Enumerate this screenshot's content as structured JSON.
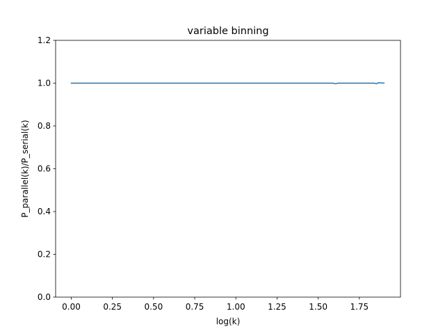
{
  "chart_data": {
    "type": "line",
    "title": "variable binning",
    "xlabel": "log(k)",
    "ylabel": "P_parallel(k)/P_serial(k)",
    "xlim": [
      -0.095,
      2.0
    ],
    "ylim": [
      0.0,
      1.2
    ],
    "xticks": [
      0.0,
      0.25,
      0.5,
      0.75,
      1.0,
      1.25,
      1.5,
      1.75
    ],
    "xtick_labels": [
      "0.00",
      "0.25",
      "0.50",
      "0.75",
      "1.00",
      "1.25",
      "1.50",
      "1.75"
    ],
    "yticks": [
      0.0,
      0.2,
      0.4,
      0.6,
      0.8,
      1.0,
      1.2
    ],
    "ytick_labels": [
      "0.0",
      "0.2",
      "0.4",
      "0.6",
      "0.8",
      "1.0",
      "1.2"
    ],
    "grid": false,
    "series": [
      {
        "color": "#1f77b4",
        "x": [
          0.0,
          0.25,
          0.5,
          0.75,
          1.0,
          1.25,
          1.5,
          1.59,
          1.605,
          1.62,
          1.75,
          1.84,
          1.855,
          1.865,
          1.9
        ],
        "y": [
          1.0,
          1.0,
          1.0,
          1.0,
          1.0,
          1.0,
          1.0,
          1.0,
          0.997,
          1.0,
          1.0,
          1.0,
          0.997,
          1.002,
          1.0
        ]
      }
    ]
  }
}
